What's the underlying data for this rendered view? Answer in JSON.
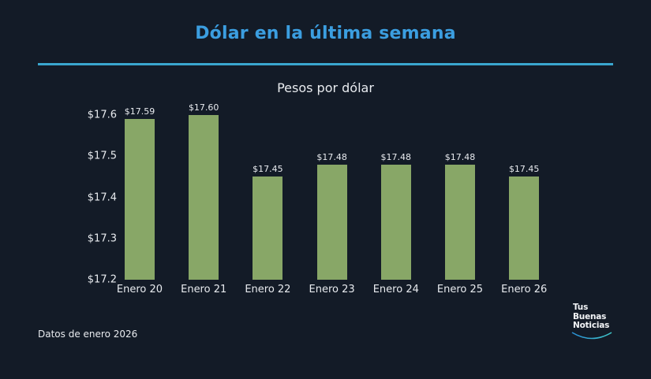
{
  "header": {
    "title": "Dólar en la última semana",
    "subtitle": "Pesos por dólar"
  },
  "footer": {
    "source_note": "Datos de enero 2026"
  },
  "logo": {
    "lines": [
      "Tus",
      "Buenas",
      "Noticias"
    ]
  },
  "colors": {
    "background": "#131b27",
    "title": "#3b9ee0",
    "divider": "#3aa6cf",
    "bar": "#88a767",
    "text": "#e8ebef"
  },
  "chart_data": {
    "type": "bar",
    "title": "Dólar en la última semana",
    "subtitle": "Pesos por dólar",
    "xlabel": "",
    "ylabel": "Pesos por dólar",
    "categories": [
      "Enero 20",
      "Enero 21",
      "Enero 22",
      "Enero 23",
      "Enero 24",
      "Enero 25",
      "Enero 26"
    ],
    "values": [
      17.59,
      17.6,
      17.45,
      17.48,
      17.48,
      17.48,
      17.45
    ],
    "data_labels": [
      "$17.59",
      "$17.60",
      "$17.45",
      "$17.48",
      "$17.48",
      "$17.48",
      "$17.45"
    ],
    "ylim": [
      17.2,
      17.6
    ],
    "yticks": [
      17.2,
      17.3,
      17.4,
      17.5,
      17.6
    ],
    "ytick_labels": [
      "$17.2",
      "$17.3",
      "$17.4",
      "$17.5",
      "$17.6"
    ],
    "grid": false,
    "legend": null,
    "annotation": "Datos de enero 2026"
  }
}
